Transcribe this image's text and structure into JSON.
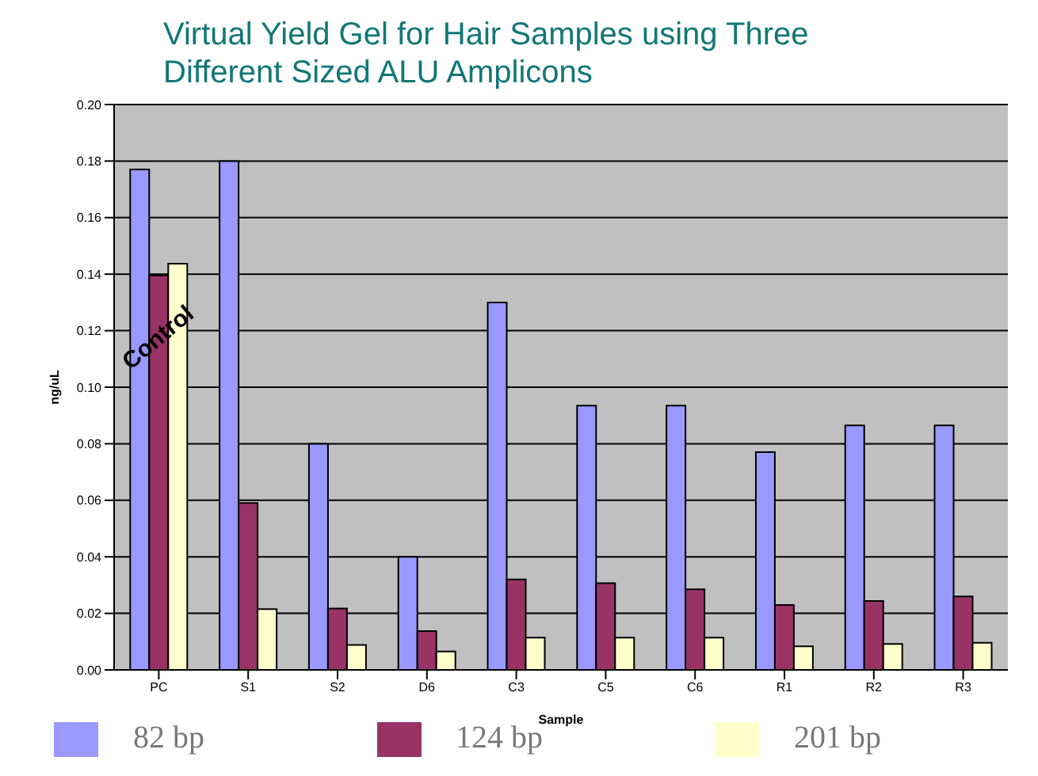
{
  "chart_data": {
    "type": "bar",
    "title": "Virtual Yield Gel for Hair Samples using Three Different Sized ALU Amplicons",
    "xlabel": "Sample",
    "ylabel": "ng/uL",
    "categories": [
      "PC",
      "S1",
      "S2",
      "D6",
      "C3",
      "C5",
      "C6",
      "R1",
      "R2",
      "R3"
    ],
    "series": [
      {
        "name": "82 bp",
        "color": "#9999ff",
        "values": [
          0.177,
          0.18,
          0.08,
          0.04,
          0.13,
          0.0935,
          0.0935,
          0.077,
          0.0865,
          0.0865
        ]
      },
      {
        "name": "124 bp",
        "color": "#993366",
        "values": [
          0.1395,
          0.059,
          0.0217,
          0.0137,
          0.032,
          0.0307,
          0.0285,
          0.023,
          0.0244,
          0.026
        ]
      },
      {
        "name": "201 bp",
        "color": "#ffffcc",
        "values": [
          0.1437,
          0.0215,
          0.0088,
          0.0065,
          0.0114,
          0.0114,
          0.0114,
          0.0083,
          0.0092,
          0.0096
        ]
      }
    ],
    "ylim": [
      0,
      0.2
    ],
    "yticks": [
      {
        "value": 0,
        "label": "0.00"
      },
      {
        "value": 0.02,
        "label": "0.02"
      },
      {
        "value": 0.04,
        "label": "0.04"
      },
      {
        "value": 0.06,
        "label": "0.06"
      },
      {
        "value": 0.08,
        "label": "0.08"
      },
      {
        "value": 0.1,
        "label": "0.10"
      },
      {
        "value": 0.12,
        "label": "0.12"
      },
      {
        "value": 0.14,
        "label": "0.14"
      },
      {
        "value": 0.16,
        "label": "0.16"
      },
      {
        "value": 0.18,
        "label": "0.18"
      },
      {
        "value": 0.2,
        "label": "0.20"
      }
    ],
    "grid": "y",
    "legend": "bottom",
    "annotations": [
      "Control"
    ]
  }
}
